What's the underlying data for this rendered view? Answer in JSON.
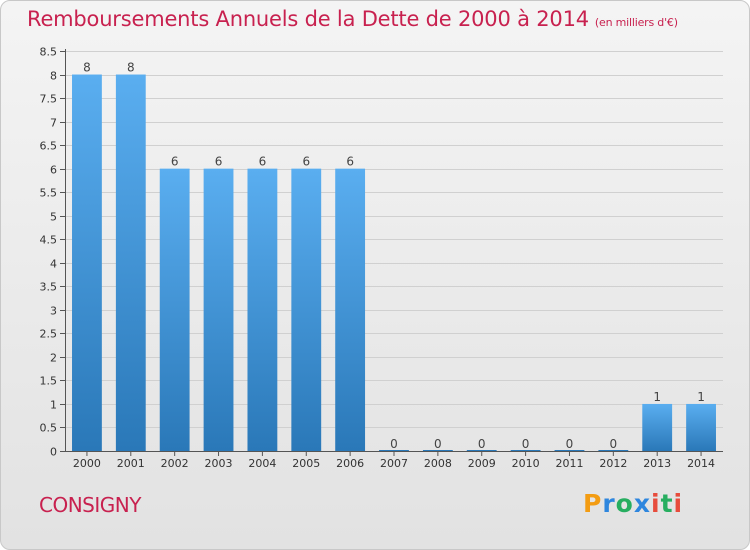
{
  "header": {
    "title": "Remboursements Annuels de la Dette de 2000 à 2014",
    "unit": "(en milliers d'€)"
  },
  "footer": {
    "commune": "CONSIGNY",
    "logo": "Proxiti"
  },
  "colors": {
    "title": "#c8214f",
    "bar_top": "#5aaef0",
    "bar_bottom": "#2a78b8",
    "logo": [
      "#f39c12",
      "#2e86de",
      "#27ae60",
      "#2e86de",
      "#e74c3c",
      "#27ae60",
      "#e74c3c"
    ]
  },
  "chart_data": {
    "type": "bar",
    "categories": [
      "2000",
      "2001",
      "2002",
      "2003",
      "2004",
      "2005",
      "2006",
      "2007",
      "2008",
      "2009",
      "2010",
      "2011",
      "2012",
      "2013",
      "2014"
    ],
    "values": [
      8,
      8,
      6,
      6,
      6,
      6,
      6,
      0,
      0,
      0,
      0,
      0,
      0,
      1,
      1
    ],
    "labels": [
      "8",
      "8",
      "6",
      "6",
      "6",
      "6",
      "6",
      "0",
      "0",
      "0",
      "0",
      "0",
      "0",
      "1",
      "1"
    ],
    "ylim": [
      0,
      8.5
    ],
    "yticks": [
      "0",
      "0.5",
      "1",
      "1.5",
      "2",
      "2.5",
      "3",
      "3.5",
      "4",
      "4.5",
      "5",
      "5.5",
      "6",
      "6.5",
      "7",
      "7.5",
      "8",
      "8.5"
    ],
    "grid": true,
    "title": "Remboursements Annuels de la Dette de 2000 à 2014",
    "xlabel": "",
    "ylabel": ""
  }
}
